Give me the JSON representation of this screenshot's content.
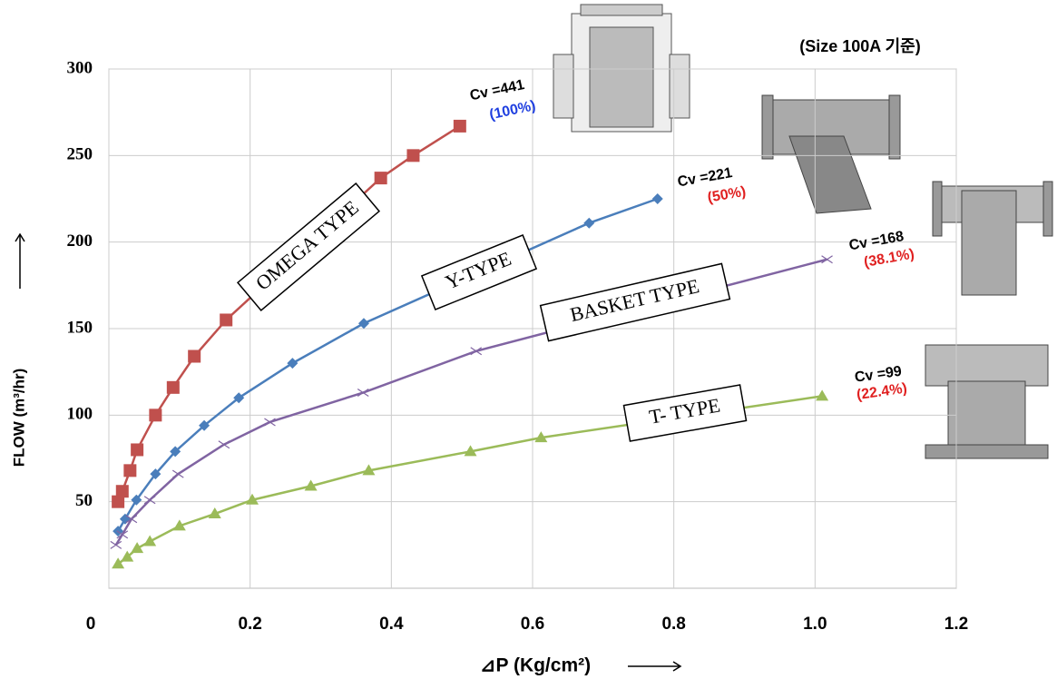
{
  "chart_data": {
    "type": "line",
    "xlabel": "⊿P  (Kg/cm²)",
    "ylabel": "FLOW  (m³/hr)",
    "xlim": [
      0,
      1.2
    ],
    "ylim": [
      0,
      300
    ],
    "xticks": [
      0,
      0.2,
      0.4,
      0.6,
      0.8,
      {
        "value": 1,
        "label": "1.0"
      },
      {
        "value": 1.2,
        "label": "1.2"
      }
    ],
    "yticks": [
      50,
      100,
      150,
      200,
      250,
      300
    ],
    "grid": true,
    "series": [
      {
        "name": "OMEGA TYPE",
        "color": "#c0504d",
        "marker": "square",
        "x": [
          0.013,
          0.019,
          0.03,
          0.04,
          0.066,
          0.091,
          0.121,
          0.166,
          0.385,
          0.431,
          0.497
        ],
        "values": [
          50,
          56,
          68,
          80,
          100,
          116,
          134,
          155,
          237,
          250,
          267
        ]
      },
      {
        "name": "Y-TYPE",
        "color": "#4a7ebb",
        "marker": "diamond",
        "x": [
          0.013,
          0.023,
          0.039,
          0.066,
          0.094,
          0.135,
          0.184,
          0.26,
          0.361,
          0.68,
          0.777
        ],
        "values": [
          33,
          40,
          51,
          66,
          79,
          94,
          110,
          130,
          153,
          211,
          225
        ]
      },
      {
        "name": "BASKET TYPE",
        "color": "#8064a2",
        "marker": "cross",
        "x": [
          0.01,
          0.019,
          0.032,
          0.058,
          0.098,
          0.163,
          0.228,
          0.36,
          0.52,
          1.017
        ],
        "values": [
          25,
          31,
          40,
          51,
          66,
          83,
          96,
          113,
          137,
          190
        ]
      },
      {
        "name": "T- TYPE",
        "color": "#9bbb59",
        "marker": "triangle",
        "x": [
          0.013,
          0.026,
          0.04,
          0.058,
          0.1,
          0.15,
          0.203,
          0.286,
          0.368,
          0.512,
          0.612,
          1.01
        ],
        "values": [
          14,
          18,
          23,
          27,
          36,
          43,
          51,
          59,
          68,
          79,
          87,
          111
        ]
      }
    ],
    "annotations": [
      {
        "text": "Cv =441",
        "color": "#000000"
      },
      {
        "text": "(100%)",
        "color": "#1f3fe0"
      },
      {
        "text": "Cv =221",
        "color": "#000000"
      },
      {
        "text": "(50%)",
        "color": "#e02020"
      },
      {
        "text": "Cv =168",
        "color": "#000000"
      },
      {
        "text": "(38.1%)",
        "color": "#e02020"
      },
      {
        "text": "Cv =99",
        "color": "#000000"
      },
      {
        "text": "(22.4%)",
        "color": "#e02020"
      },
      {
        "text": "(Size 100A 기준)",
        "color": "#000000"
      }
    ]
  }
}
